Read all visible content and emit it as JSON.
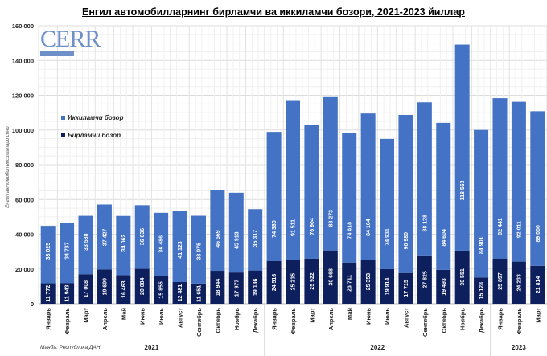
{
  "chart_data": {
    "type": "bar",
    "stacked": true,
    "title": "Енгил автомобилларнинг бирламчи ва иккиламчи бозори, 2021-2023 йиллар",
    "ylabel": "Енгил автомобил воситалари сони",
    "ylim": [
      0,
      160000
    ],
    "yticks": [
      "0",
      "20 000",
      "40 000",
      "60 000",
      "80 000",
      "100 000",
      "120 000",
      "140 000",
      "160 000"
    ],
    "grid": true,
    "legend_position": "left",
    "years": [
      {
        "label": "2021",
        "count": 12
      },
      {
        "label": "2022",
        "count": 12
      },
      {
        "label": "2023",
        "count": 3
      }
    ],
    "categories": [
      "Январь",
      "Февраль",
      "Март",
      "Апрель",
      "Май",
      "Июнь",
      "Июль",
      "Август",
      "Сентябрь",
      "Октябрь",
      "Ноябрь",
      "Декабрь",
      "Январь",
      "Февраль",
      "Март",
      "Апрель",
      "Май",
      "Июнь",
      "Июль",
      "Август",
      "Сентябрь",
      "Октябрь",
      "Ноябрь",
      "Декабрь",
      "Январь",
      "Февраль",
      "Март"
    ],
    "series": [
      {
        "name": "Бирламчи бозор",
        "color": "#0d1f5c",
        "values": [
          11772,
          11943,
          17008,
          19699,
          16463,
          20084,
          15855,
          12481,
          11651,
          18944,
          17977,
          19136,
          24516,
          25235,
          25922,
          30668,
          23711,
          25353,
          19914,
          17715,
          27825,
          19493,
          30551,
          15128,
          25897,
          24233,
          21814
        ],
        "labels": [
          "11 772",
          "11 943",
          "17 008",
          "19 699",
          "16 463",
          "20 084",
          "15 855",
          "12 481",
          "11 651",
          "18 944",
          "17 977",
          "19 136",
          "24 516",
          "25 235",
          "25 922",
          "30 668",
          "23 711",
          "25 353",
          "19 914",
          "17 715",
          "27 825",
          "19 493",
          "30 551",
          "15 128",
          "25 897",
          "24 233",
          "21 814"
        ]
      },
      {
        "name": "Иккиламчи бозор",
        "color": "#4472c4",
        "values": [
          33025,
          34737,
          33588,
          37427,
          34062,
          36636,
          36486,
          41123,
          38975,
          46569,
          45913,
          35317,
          74380,
          91511,
          76904,
          88273,
          74618,
          84164,
          74931,
          90980,
          88128,
          84604,
          118563,
          84901,
          92441,
          92011,
          89000
        ],
        "labels": [
          "33 025",
          "34 737",
          "33 588",
          "37 427",
          "34 062",
          "36 636",
          "36 486",
          "41 123",
          "38 975",
          "46 569",
          "45 913",
          "35 317",
          "74 380",
          "91 511",
          "76 904",
          "88 273",
          "74 618",
          "84 164",
          "74 931",
          "90 980",
          "88 128",
          "84 604",
          "118 563",
          "84 901",
          "92 441",
          "92 011",
          "89 000"
        ]
      }
    ]
  },
  "logo": {
    "text": "CERR",
    "subtext": "CENTER FOR ECONOMIC RESEARCH AND REFORMS"
  },
  "source": "Манба: Республика ДАН"
}
